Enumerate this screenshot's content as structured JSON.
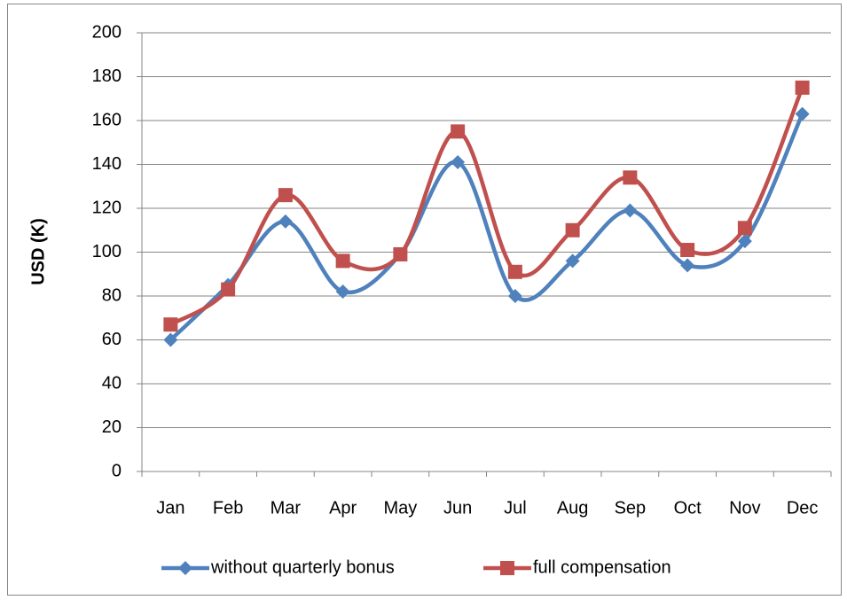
{
  "chart_data": {
    "type": "line",
    "y_label": "USD (K)",
    "categories": [
      "Jan",
      "Feb",
      "Mar",
      "Apr",
      "May",
      "Jun",
      "Jul",
      "Aug",
      "Sep",
      "Oct",
      "Nov",
      "Dec"
    ],
    "series": [
      {
        "name": "without quarterly bonus",
        "color": "#4f81bd",
        "marker": "diamond",
        "values": [
          60,
          85,
          114,
          82,
          99,
          141,
          80,
          96,
          119,
          94,
          105,
          163
        ]
      },
      {
        "name": "full compensation",
        "color": "#c0504d",
        "marker": "square",
        "values": [
          67,
          83,
          126,
          96,
          99,
          155,
          91,
          110,
          134,
          101,
          111,
          175
        ]
      }
    ],
    "ylim": [
      0,
      200
    ],
    "yticks": [
      0,
      20,
      40,
      60,
      80,
      100,
      120,
      140,
      160,
      180,
      200
    ],
    "grid": true,
    "smooth": true,
    "legend": "bottom"
  }
}
